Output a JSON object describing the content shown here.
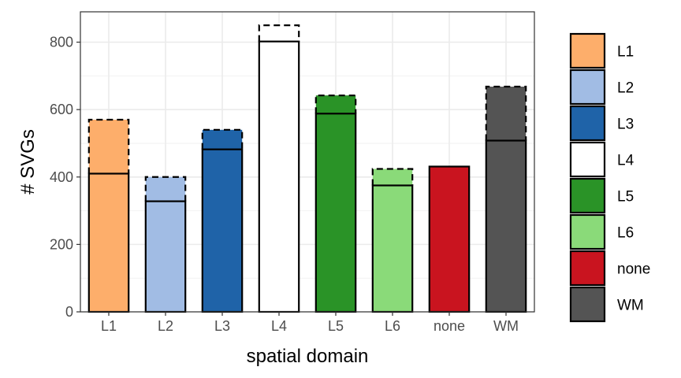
{
  "chart_data": {
    "type": "bar",
    "xlabel": "spatial domain",
    "ylabel": "# SVGs",
    "ylim": [
      0,
      890
    ],
    "yticks": [
      0,
      200,
      400,
      600,
      800
    ],
    "grid": true,
    "legend_position": "right",
    "categories": [
      "L1",
      "L2",
      "L3",
      "L4",
      "L5",
      "L6",
      "none",
      "WM"
    ],
    "colors": [
      "#FDAE6B",
      "#A1BCE4",
      "#1F63A8",
      "#FFFFFF",
      "#2A9327",
      "#8ADA79",
      "#C9141F",
      "#545454"
    ],
    "series": [
      {
        "values": [
          410,
          328,
          482,
          802,
          588,
          375,
          431,
          508
        ]
      },
      {
        "values": [
          570,
          400,
          540,
          850,
          642,
          424,
          431,
          668
        ]
      }
    ],
    "legend": [
      "L1",
      "L2",
      "L3",
      "L4",
      "L5",
      "L6",
      "none",
      "WM"
    ]
  }
}
